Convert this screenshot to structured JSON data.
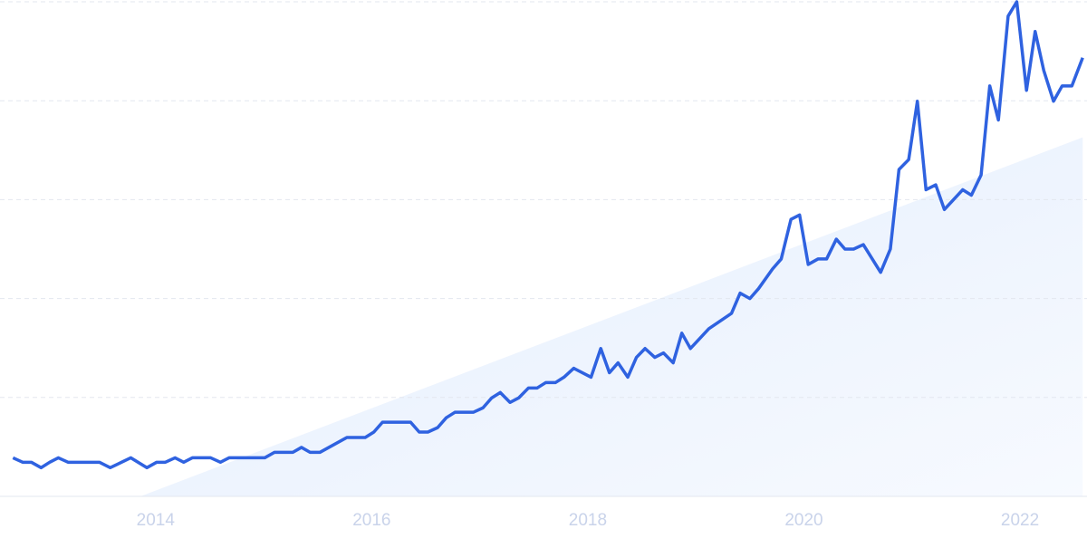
{
  "chart_data": {
    "type": "line",
    "x": [
      2012.68,
      2012.77,
      2012.85,
      2012.94,
      2013.02,
      2013.1,
      2013.19,
      2013.27,
      2013.48,
      2013.58,
      2013.77,
      2013.92,
      2014.01,
      2014.09,
      2014.18,
      2014.26,
      2014.34,
      2014.51,
      2014.6,
      2014.68,
      2015.01,
      2015.1,
      2015.27,
      2015.35,
      2015.43,
      2015.52,
      2015.77,
      2015.94,
      2016.02,
      2016.1,
      2016.36,
      2016.44,
      2016.52,
      2016.61,
      2016.69,
      2016.77,
      2016.94,
      2017.03,
      2017.11,
      2017.19,
      2017.28,
      2017.36,
      2017.45,
      2017.53,
      2017.61,
      2017.7,
      2017.78,
      2017.87,
      2018.03,
      2018.12,
      2018.2,
      2018.28,
      2018.37,
      2018.45,
      2018.53,
      2018.62,
      2018.7,
      2018.79,
      2018.87,
      2018.95,
      2019.12,
      2019.33,
      2019.41,
      2019.5,
      2019.58,
      2019.71,
      2019.79,
      2019.88,
      2019.96,
      2020.04,
      2020.13,
      2020.21,
      2020.3,
      2020.38,
      2020.46,
      2020.55,
      2020.71,
      2020.8,
      2020.88,
      2020.97,
      2021.05,
      2021.13,
      2021.22,
      2021.3,
      2021.47,
      2021.55,
      2021.64,
      2021.72,
      2021.8,
      2021.89,
      2021.97,
      2022.06,
      2022.14,
      2022.22,
      2022.31,
      2022.39,
      2022.48,
      2022.58
    ],
    "series": [
      {
        "color": "#2f62e0",
        "values": [
          7.8,
          6.9,
          6.9,
          5.8,
          6.9,
          7.8,
          6.9,
          6.9,
          6.9,
          5.8,
          7.8,
          5.8,
          6.9,
          6.9,
          7.8,
          6.9,
          7.8,
          7.8,
          6.9,
          7.8,
          7.8,
          8.9,
          8.9,
          9.9,
          8.9,
          8.9,
          11.9,
          11.9,
          13.0,
          15.0,
          15.0,
          13.0,
          13.0,
          13.9,
          15.9,
          17.0,
          17.0,
          17.9,
          19.9,
          21.0,
          19.0,
          19.9,
          21.9,
          21.9,
          23.0,
          23.0,
          24.1,
          25.9,
          24.1,
          29.9,
          25.0,
          27.0,
          24.1,
          28.1,
          29.9,
          28.1,
          29.0,
          27.0,
          33.0,
          29.9,
          33.9,
          37.0,
          41.1,
          40.0,
          42.0,
          46.0,
          48.0,
          56.0,
          56.9,
          46.9,
          48.0,
          48.0,
          52.0,
          50.0,
          50.0,
          50.9,
          45.3,
          50.0,
          66.1,
          68.1,
          79.9,
          62.0,
          63.0,
          58.0,
          62.0,
          60.9,
          65.0,
          83.0,
          76.1,
          97.1,
          100,
          82.1,
          94.0,
          86.1,
          79.9,
          83.0,
          83.0,
          88.7
        ]
      }
    ],
    "trend": {
      "x": [
        2013.86,
        2022.58
      ],
      "values": [
        0,
        72.6
      ],
      "color": "#dce9fb"
    },
    "xlim": [
      2012.56,
      2022.62
    ],
    "ylim": [
      0,
      100
    ],
    "xticks": [
      2014,
      2016,
      2018,
      2020,
      2022
    ],
    "ygrid": [
      20,
      40,
      60,
      80,
      100
    ]
  }
}
